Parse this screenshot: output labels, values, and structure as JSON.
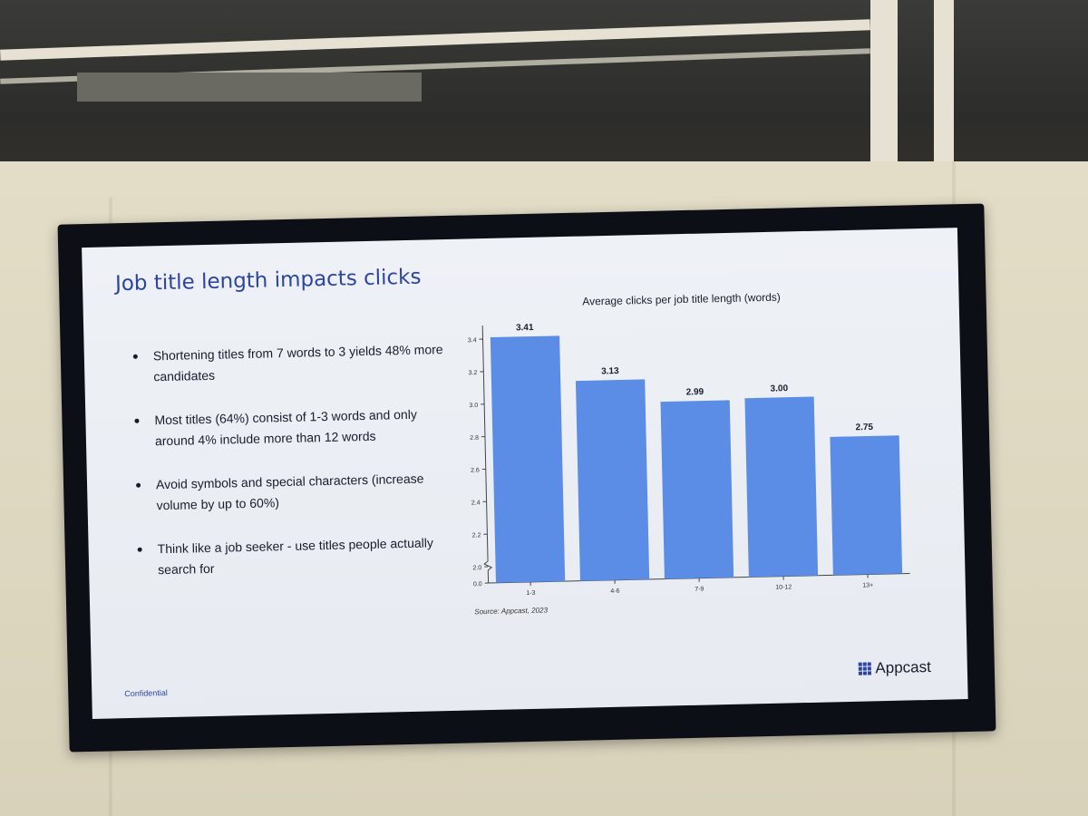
{
  "slide": {
    "title": "Job title length impacts clicks",
    "bullets": [
      "Shortening titles from 7 words to 3 yields 48% more candidates",
      "Most titles (64%) consist of 1-3 words and only around 4% include more than 12 words",
      "Avoid symbols and special characters (increase volume by up to 60%)",
      "Think like a job seeker - use titles people actually search for"
    ],
    "footer_left": "Confidential",
    "brand": "Appcast",
    "brand_icon": "appcast-dots-icon"
  },
  "chart_data": {
    "type": "bar",
    "title": "Average clicks per job title length (words)",
    "categories": [
      "1-3",
      "4-6",
      "7-9",
      "10-12",
      "13+"
    ],
    "values": [
      3.41,
      3.13,
      2.99,
      3.0,
      2.75
    ],
    "data_labels": [
      "3.41",
      "3.13",
      "2.99",
      "3.00",
      "2.75"
    ],
    "yticks": [
      "0.0",
      "2.0",
      "2.2",
      "2.4",
      "2.6",
      "2.8",
      "3.0",
      "3.2",
      "3.4"
    ],
    "ylim": [
      2.0,
      3.45
    ],
    "axis_break": true,
    "source": "Source: Appcast, 2023",
    "bar_color": "#5b8de6",
    "grid": false,
    "xlabel": "",
    "ylabel": ""
  }
}
